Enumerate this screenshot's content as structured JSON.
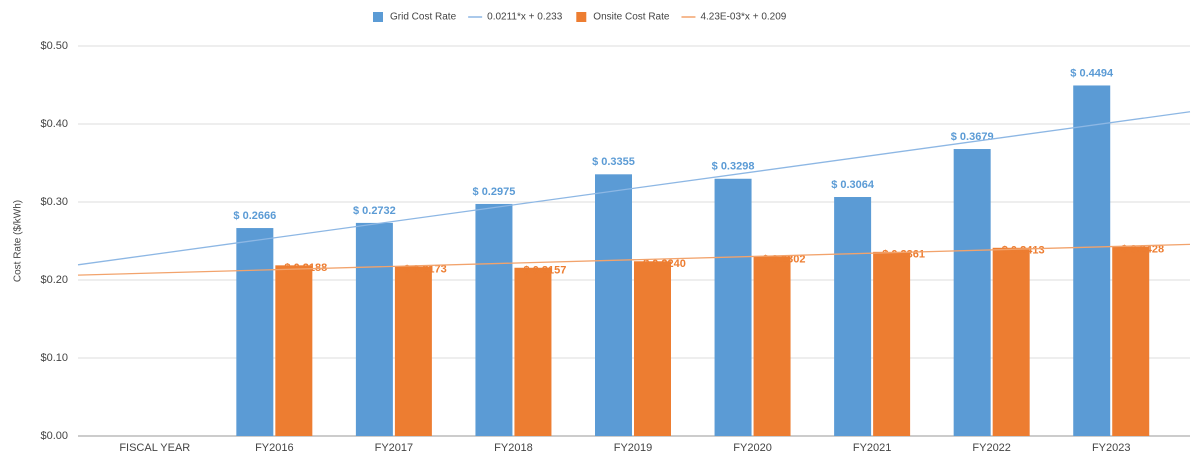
{
  "chart_data": {
    "type": "bar",
    "y_label": "Cost Rate ($/kWh)",
    "categories": [
      "FISCAL YEAR",
      "FY2016",
      "FY2017",
      "FY2018",
      "FY2019",
      "FY2020",
      "FY2021",
      "FY2022",
      "FY2023"
    ],
    "series": [
      {
        "name": "Grid Cost Rate",
        "color": "#5b9bd5",
        "values": [
          null,
          0.2666,
          0.2732,
          0.2975,
          0.3355,
          0.3298,
          0.3064,
          0.3679,
          0.4494
        ],
        "value_labels": [
          null,
          "$ 0.2666",
          "$ 0.2732",
          "$ 0.2975",
          "$ 0.3355",
          "$ 0.3298",
          "$ 0.3064",
          "$ 0.3679",
          "$ 0.4494"
        ]
      },
      {
        "name": "Onsite Cost Rate",
        "color": "#ed7d31",
        "values": [
          null,
          0.2188,
          0.2173,
          0.2157,
          0.224,
          0.2302,
          0.2361,
          0.2413,
          0.2428
        ],
        "value_labels": [
          null,
          "$ 0.2188",
          "$ 0.2173",
          "$ 0.2157",
          "$ 0.2240",
          "$ 0.2302",
          "$ 0.2361",
          "$ 0.2413",
          "$ 0.2428"
        ]
      }
    ],
    "trendlines": [
      {
        "name": "0.0211*x + 0.233",
        "slope": 0.0211,
        "intercept": 0.233,
        "color": "#8db7e4"
      },
      {
        "name": "4.23E-03*x + 0.209",
        "slope": 0.00423,
        "intercept": 0.209,
        "color": "#f2a36c"
      }
    ],
    "ylim": [
      0,
      0.5
    ],
    "yticks": [
      {
        "value": 0,
        "label": "$0.00"
      },
      {
        "value": 0.1,
        "label": "$0.10"
      },
      {
        "value": 0.2,
        "label": "$0.20"
      },
      {
        "value": 0.3,
        "label": "$0.30"
      },
      {
        "value": 0.4,
        "label": "$0.40"
      },
      {
        "value": 0.5,
        "label": "$0.50"
      }
    ],
    "grid": true,
    "legend": "top"
  }
}
